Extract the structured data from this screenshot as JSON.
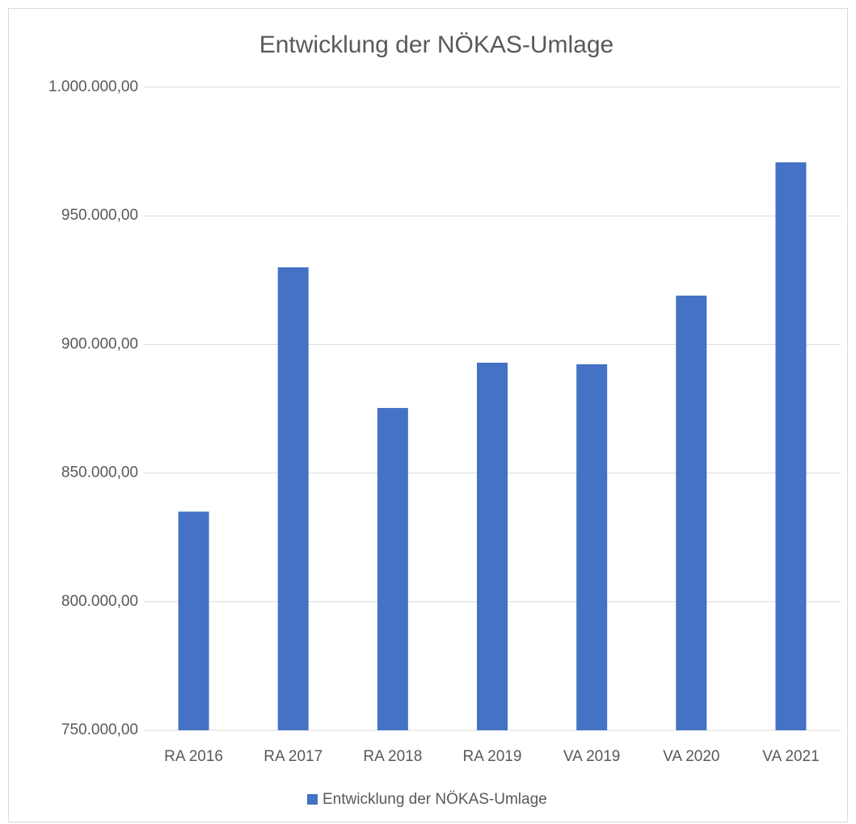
{
  "chart_data": {
    "type": "bar",
    "title": "Entwicklung der NÖKAS-Umlage",
    "categories": [
      "RA 2016",
      "RA 2017",
      "RA 2018",
      "RA 2019",
      "VA 2019",
      "VA 2020",
      "VA 2021"
    ],
    "series": [
      {
        "name": "Entwicklung der NÖKAS-Umlage",
        "color": "#4472c4",
        "values": [
          835000,
          930000,
          875300,
          892900,
          892300,
          919000,
          970800
        ]
      }
    ],
    "ylim": [
      750000,
      1000000
    ],
    "yticks": [
      {
        "value": 750000,
        "label": "750.000,00"
      },
      {
        "value": 800000,
        "label": "800.000,00"
      },
      {
        "value": 850000,
        "label": "850.000,00"
      },
      {
        "value": 900000,
        "label": "900.000,00"
      },
      {
        "value": 950000,
        "label": "950.000,00"
      },
      {
        "value": 1000000,
        "label": "1.000.000,00"
      }
    ],
    "grid": true,
    "legend": "bottom"
  }
}
